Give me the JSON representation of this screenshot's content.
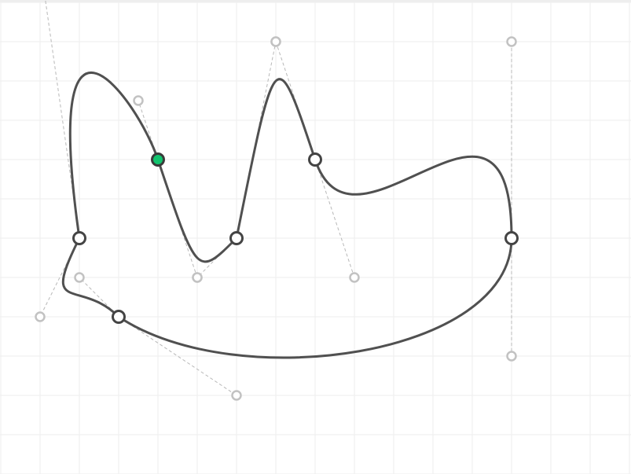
{
  "editor": {
    "colors": {
      "grid": "#eeeeee",
      "curve": "#505050",
      "handle_line": "#b8b8b8",
      "handle_point": "#c2c2c2",
      "anchor_stroke": "#444444",
      "selected_fill": "#12c46e"
    },
    "grid": {
      "visible": true,
      "spacing_units": 1
    },
    "closed_path": true,
    "selected_anchor": 1,
    "anchors": [
      {
        "id": "anchor-1",
        "x": 2,
        "y": 6,
        "in": [
          1.0,
          8.0
        ],
        "out": [
          1.0,
          -1.0
        ]
      },
      {
        "id": "anchor-2",
        "x": 4,
        "y": 4,
        "in": [
          3.5,
          2.5
        ],
        "out": [
          5.0,
          7.0
        ]
      },
      {
        "id": "anchor-3",
        "x": 6,
        "y": 6,
        "in": [
          5.0,
          7.0
        ],
        "out": [
          7.0,
          1.0
        ]
      },
      {
        "id": "anchor-4",
        "x": 8,
        "y": 4,
        "in": [
          7.0,
          1.0
        ],
        "out": [
          9.0,
          7.0
        ]
      },
      {
        "id": "anchor-5",
        "x": 13,
        "y": 6,
        "in": [
          13.0,
          1.0
        ],
        "out": [
          13.0,
          9.0
        ]
      },
      {
        "id": "anchor-6",
        "x": 3,
        "y": 8,
        "in": [
          6.0,
          10.0
        ],
        "out": [
          2.0,
          7.0
        ]
      }
    ]
  }
}
